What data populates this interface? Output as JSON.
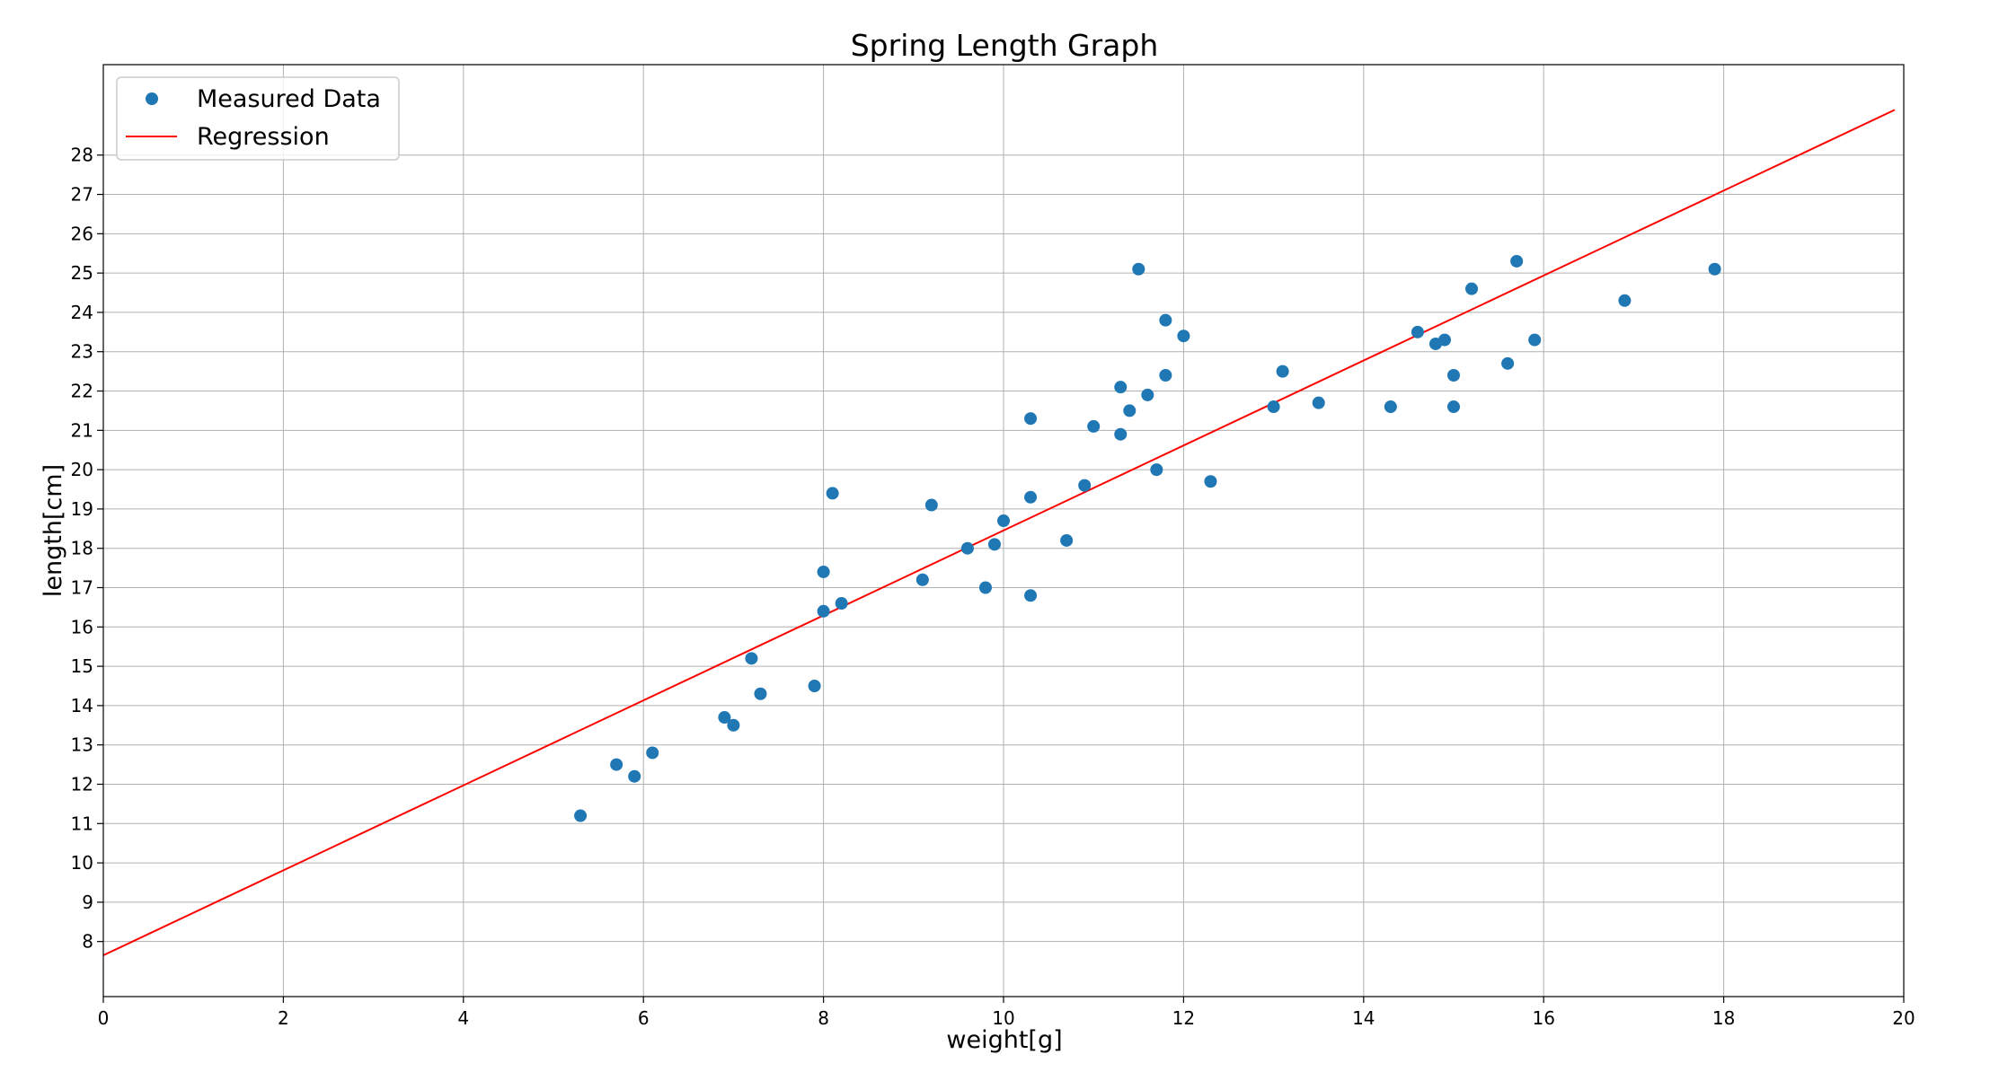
{
  "chart_data": {
    "type": "scatter",
    "title": "Spring Length Graph",
    "xlabel": "weight[g]",
    "ylabel": "length[cm]",
    "xlim": [
      0,
      20
    ],
    "ylim": [
      6.6,
      30.3
    ],
    "xticks": [
      0,
      2,
      4,
      6,
      8,
      10,
      12,
      14,
      16,
      18,
      20
    ],
    "yticks": [
      8,
      9,
      10,
      11,
      12,
      13,
      14,
      15,
      16,
      17,
      18,
      19,
      20,
      21,
      22,
      23,
      24,
      25,
      26,
      27,
      28
    ],
    "grid": true,
    "legend_position": "top-left",
    "series": [
      {
        "name": "Measured Data",
        "kind": "scatter",
        "color": "#1f77b4",
        "points": [
          [
            5.3,
            11.2
          ],
          [
            5.7,
            12.5
          ],
          [
            5.9,
            12.2
          ],
          [
            6.1,
            12.8
          ],
          [
            6.9,
            13.7
          ],
          [
            7.0,
            13.5
          ],
          [
            7.2,
            15.2
          ],
          [
            7.3,
            14.3
          ],
          [
            7.9,
            14.5
          ],
          [
            8.0,
            16.4
          ],
          [
            8.0,
            17.4
          ],
          [
            8.1,
            19.4
          ],
          [
            8.2,
            16.6
          ],
          [
            9.1,
            17.2
          ],
          [
            9.2,
            19.1
          ],
          [
            9.6,
            18.0
          ],
          [
            9.8,
            17.0
          ],
          [
            9.9,
            18.1
          ],
          [
            10.0,
            18.7
          ],
          [
            10.3,
            21.3
          ],
          [
            10.3,
            19.3
          ],
          [
            10.3,
            16.8
          ],
          [
            10.7,
            18.2
          ],
          [
            10.9,
            19.6
          ],
          [
            11.0,
            21.1
          ],
          [
            11.3,
            22.1
          ],
          [
            11.3,
            20.9
          ],
          [
            11.4,
            21.5
          ],
          [
            11.5,
            25.1
          ],
          [
            11.6,
            21.9
          ],
          [
            11.7,
            20.0
          ],
          [
            11.8,
            23.8
          ],
          [
            11.8,
            22.4
          ],
          [
            12.0,
            23.4
          ],
          [
            12.3,
            19.7
          ],
          [
            13.0,
            21.6
          ],
          [
            13.1,
            22.5
          ],
          [
            13.5,
            21.7
          ],
          [
            14.3,
            21.6
          ],
          [
            14.6,
            23.5
          ],
          [
            14.8,
            23.2
          ],
          [
            14.9,
            23.3
          ],
          [
            15.0,
            22.4
          ],
          [
            15.0,
            21.6
          ],
          [
            15.2,
            24.6
          ],
          [
            15.6,
            22.7
          ],
          [
            15.7,
            25.3
          ],
          [
            15.9,
            23.3
          ],
          [
            16.9,
            24.3
          ],
          [
            17.9,
            25.1
          ]
        ]
      },
      {
        "name": "Regression",
        "kind": "line",
        "color": "#ff0000",
        "x": [
          0,
          19.9
        ],
        "y": [
          7.65,
          29.15
        ]
      }
    ]
  }
}
